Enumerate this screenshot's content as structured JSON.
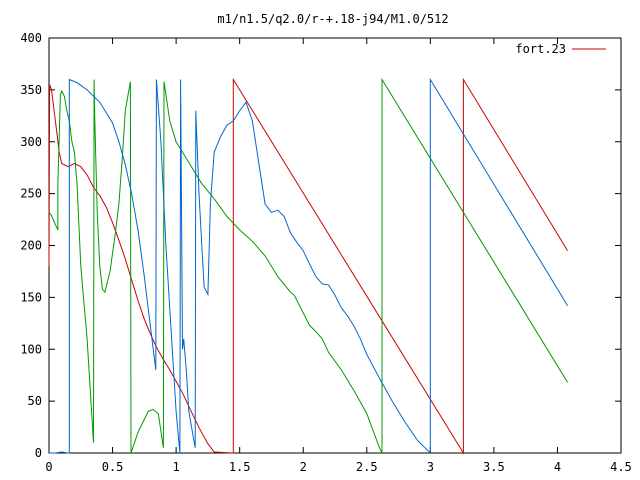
{
  "chart_data": {
    "type": "line",
    "title": "m1/n1.5/q2.0/r-+.18-j94/M1.0/512",
    "xlabel": "",
    "ylabel": "",
    "xlim": [
      0,
      4.5
    ],
    "ylim": [
      0,
      400
    ],
    "xticks": [
      "0",
      "0.5",
      "1",
      "1.5",
      "2",
      "2.5",
      "3",
      "3.5",
      "4",
      "4.5"
    ],
    "yticks": [
      "0",
      "50",
      "100",
      "150",
      "200",
      "250",
      "300",
      "350",
      "400"
    ],
    "grid": false,
    "legend_position": "top-right",
    "legend": [
      {
        "label": "fort.23",
        "color": "#cc0000"
      }
    ],
    "series": [
      {
        "name": "fort.23",
        "color": "#cc0000",
        "points": [
          [
            0,
            180
          ],
          [
            0.005,
            355
          ],
          [
            0.02,
            350
          ],
          [
            0.05,
            320
          ],
          [
            0.08,
            290
          ],
          [
            0.1,
            279
          ],
          [
            0.15,
            276
          ],
          [
            0.2,
            279
          ],
          [
            0.25,
            276
          ],
          [
            0.3,
            268
          ],
          [
            0.35,
            256
          ],
          [
            0.4,
            248
          ],
          [
            0.45,
            237
          ],
          [
            0.5,
            222
          ],
          [
            0.55,
            205
          ],
          [
            0.6,
            187
          ],
          [
            0.65,
            167
          ],
          [
            0.7,
            147
          ],
          [
            0.75,
            129
          ],
          [
            0.8,
            114
          ],
          [
            0.85,
            101
          ],
          [
            0.9,
            90
          ],
          [
            0.95,
            80
          ],
          [
            1.0,
            69
          ],
          [
            1.05,
            58
          ],
          [
            1.1,
            45
          ],
          [
            1.15,
            32
          ],
          [
            1.2,
            20
          ],
          [
            1.25,
            9
          ],
          [
            1.3,
            1
          ],
          [
            1.45,
            0
          ],
          [
            1.45,
            360
          ],
          [
            3.26,
            0
          ],
          [
            3.26,
            360
          ],
          [
            4.08,
            195
          ]
        ]
      },
      {
        "name": "",
        "color": "#009900",
        "points": [
          [
            0,
            232
          ],
          [
            0.02,
            229
          ],
          [
            0.05,
            220
          ],
          [
            0.07,
            215
          ],
          [
            0.07,
            260
          ],
          [
            0.09,
            345
          ],
          [
            0.1,
            349
          ],
          [
            0.12,
            344
          ],
          [
            0.14,
            330
          ],
          [
            0.16,
            320
          ],
          [
            0.18,
            300
          ],
          [
            0.2,
            290
          ],
          [
            0.22,
            260
          ],
          [
            0.25,
            180
          ],
          [
            0.3,
            110
          ],
          [
            0.35,
            10
          ],
          [
            0.355,
            360
          ],
          [
            0.36,
            320
          ],
          [
            0.38,
            230
          ],
          [
            0.4,
            180
          ],
          [
            0.42,
            158
          ],
          [
            0.44,
            155
          ],
          [
            0.48,
            175
          ],
          [
            0.52,
            210
          ],
          [
            0.55,
            240
          ],
          [
            0.58,
            290
          ],
          [
            0.6,
            330
          ],
          [
            0.64,
            358
          ],
          [
            0.645,
            0
          ],
          [
            0.7,
            20
          ],
          [
            0.78,
            40
          ],
          [
            0.82,
            42
          ],
          [
            0.86,
            38
          ],
          [
            0.9,
            5
          ],
          [
            0.905,
            358
          ],
          [
            0.95,
            320
          ],
          [
            1.0,
            300
          ],
          [
            1.05,
            290
          ],
          [
            1.1,
            280
          ],
          [
            1.2,
            260
          ],
          [
            1.3,
            245
          ],
          [
            1.4,
            228
          ],
          [
            1.5,
            215
          ],
          [
            1.6,
            204
          ],
          [
            1.7,
            190
          ],
          [
            1.8,
            170
          ],
          [
            1.9,
            155
          ],
          [
            1.93,
            152
          ],
          [
            2.0,
            135
          ],
          [
            2.05,
            123
          ],
          [
            2.1,
            117
          ],
          [
            2.15,
            110
          ],
          [
            2.2,
            97
          ],
          [
            2.3,
            80
          ],
          [
            2.4,
            60
          ],
          [
            2.5,
            38
          ],
          [
            2.6,
            5
          ],
          [
            2.62,
            0
          ],
          [
            2.62,
            360
          ],
          [
            4.08,
            68
          ]
        ]
      },
      {
        "name": "",
        "color": "#0066cc",
        "points": [
          [
            0,
            0
          ],
          [
            0.05,
            0
          ],
          [
            0.1,
            1
          ],
          [
            0.15,
            0
          ],
          [
            0.16,
            0
          ],
          [
            0.16,
            360
          ],
          [
            0.22,
            357
          ],
          [
            0.3,
            350
          ],
          [
            0.4,
            338
          ],
          [
            0.5,
            318
          ],
          [
            0.55,
            300
          ],
          [
            0.6,
            278
          ],
          [
            0.65,
            250
          ],
          [
            0.7,
            215
          ],
          [
            0.75,
            170
          ],
          [
            0.8,
            120
          ],
          [
            0.84,
            80
          ],
          [
            0.845,
            360
          ],
          [
            0.88,
            300
          ],
          [
            0.92,
            200
          ],
          [
            0.96,
            120
          ],
          [
            1.0,
            40
          ],
          [
            1.03,
            0
          ],
          [
            1.035,
            360
          ],
          [
            1.05,
            100
          ],
          [
            1.06,
            110
          ],
          [
            1.08,
            80
          ],
          [
            1.1,
            40
          ],
          [
            1.15,
            5
          ],
          [
            1.155,
            330
          ],
          [
            1.18,
            250
          ],
          [
            1.22,
            160
          ],
          [
            1.25,
            153
          ],
          [
            1.27,
            240
          ],
          [
            1.3,
            290
          ],
          [
            1.35,
            305
          ],
          [
            1.4,
            316
          ],
          [
            1.45,
            320
          ],
          [
            1.5,
            330
          ],
          [
            1.55,
            338
          ],
          [
            1.6,
            320
          ],
          [
            1.65,
            280
          ],
          [
            1.7,
            240
          ],
          [
            1.75,
            232
          ],
          [
            1.8,
            234
          ],
          [
            1.85,
            228
          ],
          [
            1.9,
            212
          ],
          [
            1.95,
            203
          ],
          [
            2.0,
            195
          ],
          [
            2.05,
            182
          ],
          [
            2.1,
            170
          ],
          [
            2.15,
            163
          ],
          [
            2.2,
            162
          ],
          [
            2.25,
            152
          ],
          [
            2.3,
            140
          ],
          [
            2.35,
            132
          ],
          [
            2.4,
            122
          ],
          [
            2.45,
            110
          ],
          [
            2.5,
            95
          ],
          [
            2.6,
            72
          ],
          [
            2.7,
            50
          ],
          [
            2.8,
            30
          ],
          [
            2.9,
            12
          ],
          [
            3.0,
            0
          ],
          [
            3.0,
            360
          ],
          [
            4.08,
            142
          ]
        ]
      }
    ]
  }
}
